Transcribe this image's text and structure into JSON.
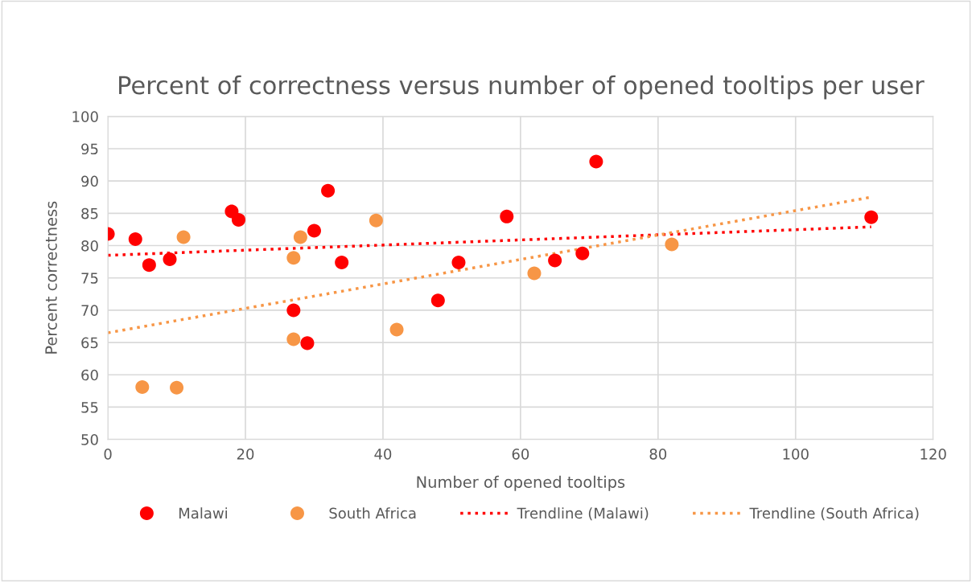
{
  "chart_data": {
    "type": "scatter",
    "title": "Percent of correctness versus number of opened tooltips per user",
    "xlabel": "Number of opened tooltips",
    "ylabel": "Percent correctness",
    "xlim": [
      0,
      120
    ],
    "xticks": [
      0,
      20,
      40,
      60,
      80,
      100,
      120
    ],
    "ylim": [
      50,
      100
    ],
    "yticks": [
      50,
      55,
      60,
      65,
      70,
      75,
      80,
      85,
      90,
      95,
      100
    ],
    "grid": true,
    "legend": "bottom",
    "marker": "circle",
    "series": [
      {
        "name": "Malawi",
        "color": "#ff0000",
        "x": [
          0,
          4,
          6,
          9,
          18,
          19,
          27,
          29,
          30,
          32,
          34,
          48,
          51,
          58,
          65,
          69,
          71,
          111
        ],
        "values": [
          81.8,
          81,
          77,
          77.9,
          85.3,
          84,
          70,
          64.9,
          82.3,
          88.5,
          77.4,
          71.5,
          77.4,
          84.5,
          77.7,
          78.8,
          93,
          84.4
        ]
      },
      {
        "name": "South Africa",
        "color": "#f79646",
        "x": [
          5,
          10,
          11,
          27,
          27,
          28,
          39,
          42,
          62,
          82
        ],
        "values": [
          58.1,
          58,
          81.3,
          78.1,
          65.5,
          81.3,
          83.9,
          67,
          75.7,
          80.2
        ]
      },
      {
        "name": "Trendline (Malawi)",
        "type": "line",
        "line_style": "dotted",
        "marker": "none",
        "color": "#ff0000",
        "x": [
          0,
          111
        ],
        "values": [
          78.5,
          82.9
        ]
      },
      {
        "name": "Trendline (South Africa)",
        "type": "line",
        "line_style": "dotted",
        "marker": "none",
        "color": "#f79646",
        "x": [
          0,
          111
        ],
        "values": [
          66.5,
          87.5
        ]
      }
    ]
  }
}
